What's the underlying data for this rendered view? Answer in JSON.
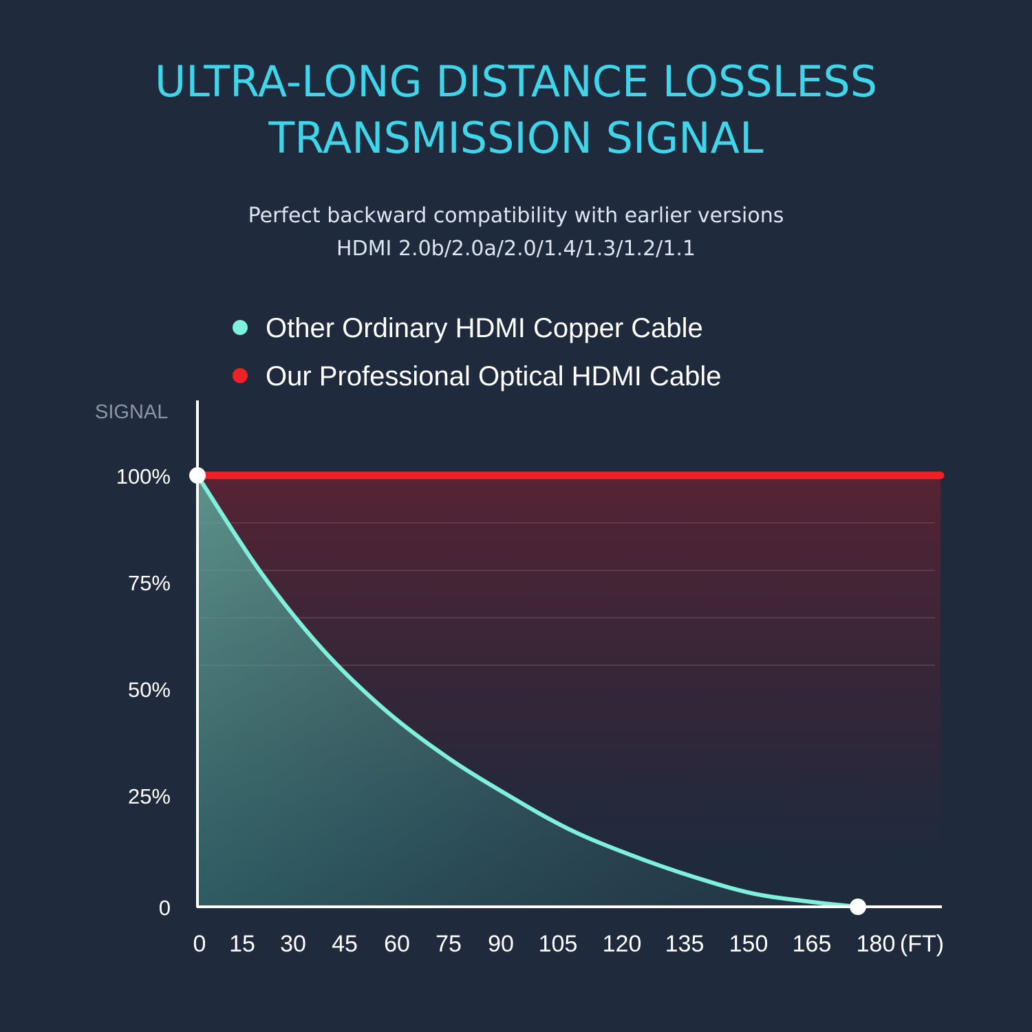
{
  "header": {
    "title_line1": "ULTRA-LONG DISTANCE LOSSLESS",
    "title_line2": "TRANSMISSION SIGNAL",
    "subtitle_line1": "Perfect backward compatibility with earlier versions",
    "subtitle_line2": "HDMI 2.0b/2.0a/2.0/1.4/1.3/1.2/1.1"
  },
  "colors": {
    "background": "#1f2a3d",
    "title": "#3fd6ec",
    "copper": "#7ef0dc",
    "optical": "#ee2226",
    "axis": "#ffffff"
  },
  "chart_data": {
    "type": "line",
    "title": "ULTRA-LONG DISTANCE LOSSLESS TRANSMISSION SIGNAL",
    "ylabel": "SIGNAL",
    "xunit": "(FT)",
    "xlim": [
      0,
      180
    ],
    "ylim": [
      0,
      100
    ],
    "x_ticks": [
      "0",
      "15",
      "30",
      "45",
      "60",
      "75",
      "90",
      "105",
      "120",
      "135",
      "150",
      "165",
      "180"
    ],
    "y_ticks": [
      {
        "label": "100%",
        "value": 100
      },
      {
        "label": "75%",
        "value": 75
      },
      {
        "label": "50%",
        "value": 50
      },
      {
        "label": "25%",
        "value": 25
      },
      {
        "label": "0",
        "value": 0
      }
    ],
    "legend_position": "top",
    "series": [
      {
        "name": "Other Ordinary HDMI Copper Cable",
        "color": "#7ef0dc",
        "x": [
          0,
          15,
          30,
          45,
          60,
          75,
          90,
          105,
          120,
          135,
          150,
          160
        ],
        "y": [
          100,
          78,
          60,
          46,
          35,
          26,
          18,
          12,
          7,
          3,
          1,
          0
        ]
      },
      {
        "name": "Our Professional Optical HDMI Cable",
        "color": "#ee2226",
        "x": [
          0,
          180
        ],
        "y": [
          100,
          100
        ]
      }
    ]
  }
}
